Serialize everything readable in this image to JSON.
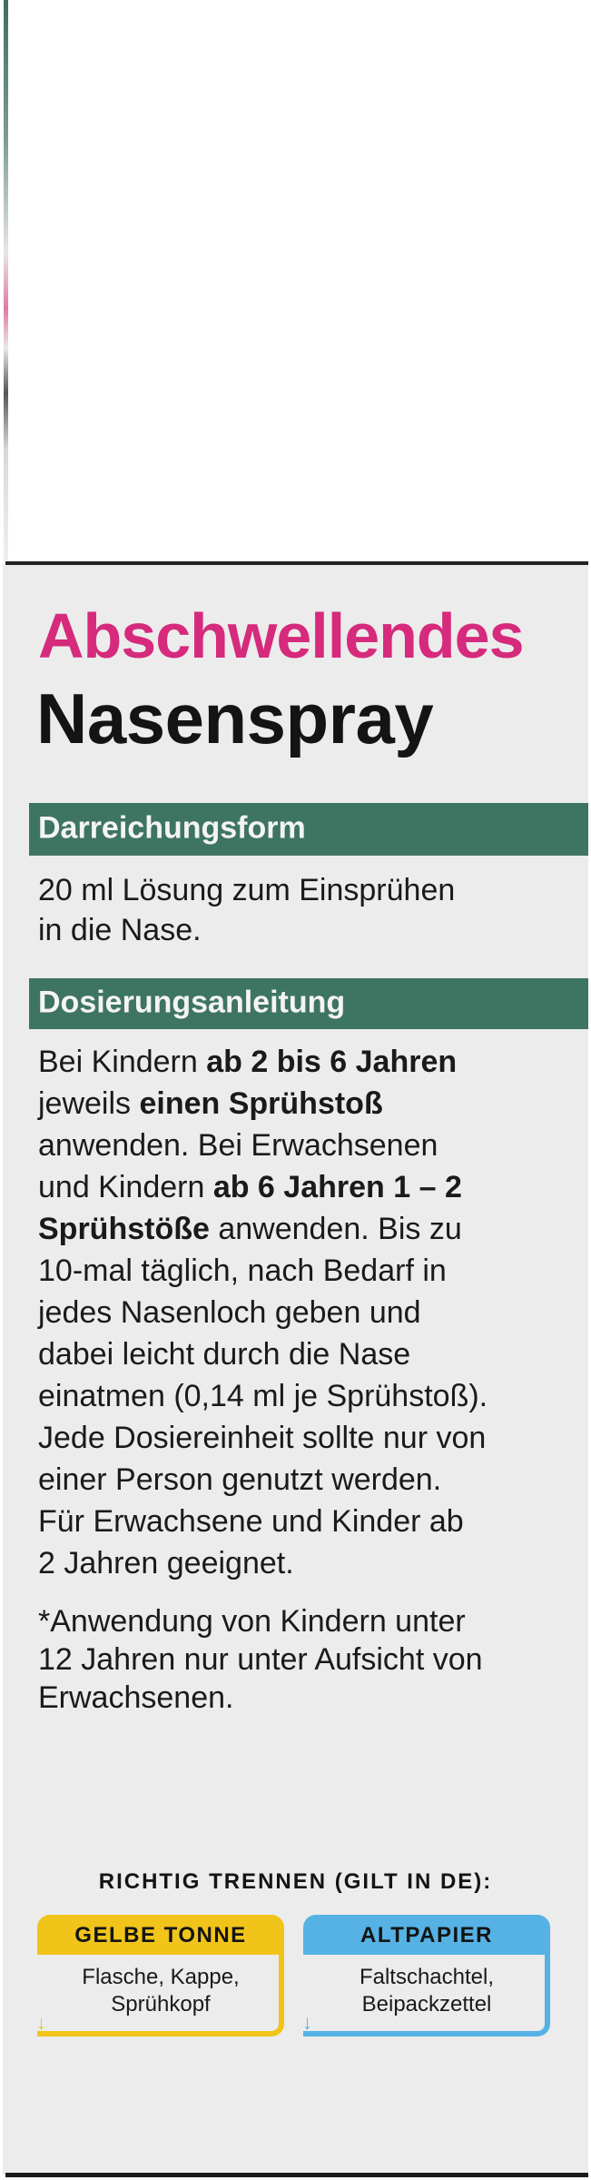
{
  "title": {
    "line1": "Abschwellendes",
    "line2": "Nasenspray"
  },
  "colors": {
    "title_accent": "#d62a7c",
    "section_bar": "#3e7462",
    "yellow_bin": "#f0c419",
    "blue_bin": "#56b2e4",
    "panel": "#ececec"
  },
  "sections": [
    {
      "heading": "Darreichungsform",
      "lines": [
        [
          "20 ml Lösung zum Einsprühen"
        ],
        [
          "in die Nase."
        ]
      ]
    },
    {
      "heading": "Dosierungsanleitung",
      "lines": [
        {
          "normal": "Bei Kindern ",
          "bold": "ab 2 bis 6 Jahren"
        },
        {
          "normal": "jeweils ",
          "bold": "einen Sprühstoß"
        },
        {
          "normal": "anwenden. Bei Erwachsenen"
        },
        {
          "normal": "und Kindern ",
          "bold": "ab 6 Jahren 1 – 2"
        },
        {
          "bold": "Sprühstöße",
          "normal2": " anwenden. Bis zu"
        },
        {
          "normal": "10-mal täglich, nach Bedarf in"
        },
        {
          "normal": "jedes Nasenloch geben und"
        },
        {
          "normal": "dabei leicht durch die Nase"
        },
        {
          "normal": "einatmen (0,14 ml je Sprühstoß)."
        },
        {
          "normal": "Jede Dosiereinheit sollte nur von"
        },
        {
          "normal": "einer Person genutzt werden."
        },
        {
          "normal": "Für Erwachsene und Kinder ab"
        },
        {
          "normal": "2 Jahren geeignet."
        }
      ],
      "note": [
        "*Anwendung von Kindern unter",
        "12 Jahren nur unter Aufsicht von",
        "Erwachsenen."
      ]
    }
  ],
  "recycling": {
    "heading": "RICHTIG TRENNEN (GILT IN DE):",
    "bins": [
      {
        "label": "GELBE TONNE",
        "items": [
          "Flasche, Kappe,",
          "Sprühkopf"
        ],
        "icon": "arrow-down-icon"
      },
      {
        "label": "ALTPAPIER",
        "items": [
          "Faltschachtel,",
          "Beipackzettel"
        ],
        "icon": "arrow-down-icon"
      }
    ]
  }
}
